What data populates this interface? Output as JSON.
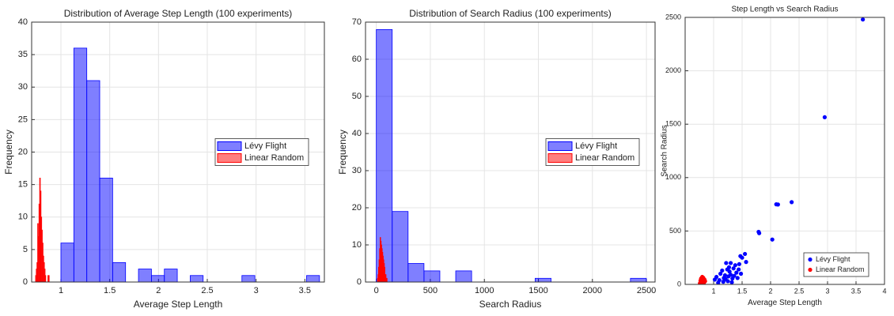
{
  "chart_data": [
    {
      "type": "histogram",
      "title": "Distribution of Average Step Length (100 experiments)",
      "xlabel": "Average Step Length",
      "ylabel": "Frequency",
      "xlim": [
        0.7,
        3.7
      ],
      "xticks": [
        1,
        1.5,
        2,
        2.5,
        3,
        3.5
      ],
      "ylim": [
        0,
        40
      ],
      "yticks": [
        0,
        5,
        10,
        15,
        20,
        25,
        30,
        35,
        40
      ],
      "grid": true,
      "legend": "center right",
      "series": [
        {
          "name": "Lévy Flight",
          "color": "#0000ff",
          "bins": [
            1,
            1.1325,
            1.265,
            1.3975,
            1.53,
            1.6625,
            1.795,
            1.9275,
            2.06,
            2.1925,
            2.325,
            2.4575,
            2.59,
            2.7225,
            2.855,
            2.9875,
            3.12,
            3.2525,
            3.385,
            3.5175,
            3.65
          ],
          "values": [
            6,
            36,
            31,
            16,
            3,
            0,
            2,
            1,
            2,
            0,
            1,
            0,
            0,
            0,
            1,
            0,
            0,
            0,
            0,
            1
          ]
        },
        {
          "name": "Linear Random",
          "color": "#ff0000",
          "bins": [
            0.74,
            0.747,
            0.754,
            0.761,
            0.768,
            0.775,
            0.782,
            0.789,
            0.796,
            0.803,
            0.81,
            0.817,
            0.824,
            0.831,
            0.838,
            0.845,
            0.852,
            0.859,
            0.866,
            0.873,
            0.88
          ],
          "values": [
            1,
            2,
            3,
            9,
            7,
            12,
            16,
            14,
            10,
            8,
            6,
            4,
            3,
            2,
            1,
            0,
            0,
            0,
            1,
            1
          ]
        }
      ]
    },
    {
      "type": "histogram",
      "title": "Distribution of Search Radius (100 experiments)",
      "xlabel": "Search Radius",
      "ylabel": "Frequency",
      "xlim": [
        -100,
        2580
      ],
      "xticks": [
        0,
        500,
        1000,
        1500,
        2000,
        2500
      ],
      "ylim": [
        0,
        70
      ],
      "yticks": [
        0,
        10,
        20,
        30,
        40,
        50,
        60,
        70
      ],
      "grid": true,
      "legend": "center right",
      "series": [
        {
          "name": "Lévy Flight",
          "color": "#0000ff",
          "bins": [
            0,
            147,
            294,
            441,
            588,
            735,
            882,
            1029,
            1176,
            1323,
            1470,
            1617,
            1764,
            1911,
            2058,
            2205,
            2352,
            2499
          ],
          "values": [
            68,
            19,
            5,
            3,
            0,
            3,
            0,
            0,
            0,
            0,
            1,
            0,
            0,
            0,
            0,
            0,
            1
          ]
        },
        {
          "name": "Linear Random",
          "color": "#ff0000",
          "bins": [
            10,
            15,
            20,
            25,
            30,
            35,
            40,
            45,
            50,
            55,
            60,
            65,
            70,
            75,
            80,
            85,
            90,
            95,
            100,
            105,
            110
          ],
          "values": [
            1,
            2,
            4,
            6,
            9,
            12,
            11,
            10,
            9,
            8,
            7,
            6,
            5,
            4,
            2,
            2,
            1,
            1,
            0,
            0
          ]
        }
      ]
    },
    {
      "type": "scatter",
      "title": "Step Length vs Search Radius",
      "xlabel": "Average Step Length",
      "ylabel": "Search Radius",
      "xlim": [
        0.5,
        4
      ],
      "xticks": [
        1,
        1.5,
        2,
        2.5,
        3,
        3.5,
        4
      ],
      "ylim": [
        0,
        2500
      ],
      "yticks": [
        0,
        500,
        1000,
        1500,
        2000,
        2500
      ],
      "grid": true,
      "legend": "lower right",
      "series": [
        {
          "name": "Lévy Flight",
          "color": "#0000ff",
          "x": [
            3.62,
            2.95,
            2.37,
            2.1,
            2.13,
            1.8,
            1.79,
            2.03,
            1.55,
            1.47,
            1.5,
            1.45,
            1.57,
            1.35,
            1.28,
            1.22,
            1.3,
            1.18,
            1.1,
            1.05,
            1.25,
            1.33,
            1.4,
            1.15,
            1.2,
            1.38,
            1.27,
            1.12,
            1.32,
            1.42,
            1.08,
            1.24,
            1.36,
            1.48,
            1.17,
            1.3,
            1.02,
            1.21,
            1.44,
            1.26
          ],
          "values": [
            2480,
            1565,
            770,
            750,
            748,
            480,
            492,
            420,
            285,
            265,
            250,
            190,
            210,
            150,
            120,
            200,
            90,
            60,
            40,
            70,
            30,
            55,
            110,
            130,
            85,
            180,
            160,
            100,
            20,
            60,
            15,
            140,
            80,
            100,
            25,
            200,
            45,
            50,
            140,
            75
          ]
        },
        {
          "name": "Linear Random",
          "color": "#ff0000",
          "x": [
            0.78,
            0.8,
            0.82,
            0.76,
            0.79,
            0.81,
            0.83,
            0.77,
            0.8,
            0.84,
            0.78,
            0.82,
            0.79,
            0.85,
            0.81
          ],
          "values": [
            20,
            40,
            60,
            10,
            50,
            30,
            15,
            35,
            70,
            45,
            55,
            25,
            5,
            30,
            65
          ]
        }
      ]
    }
  ]
}
